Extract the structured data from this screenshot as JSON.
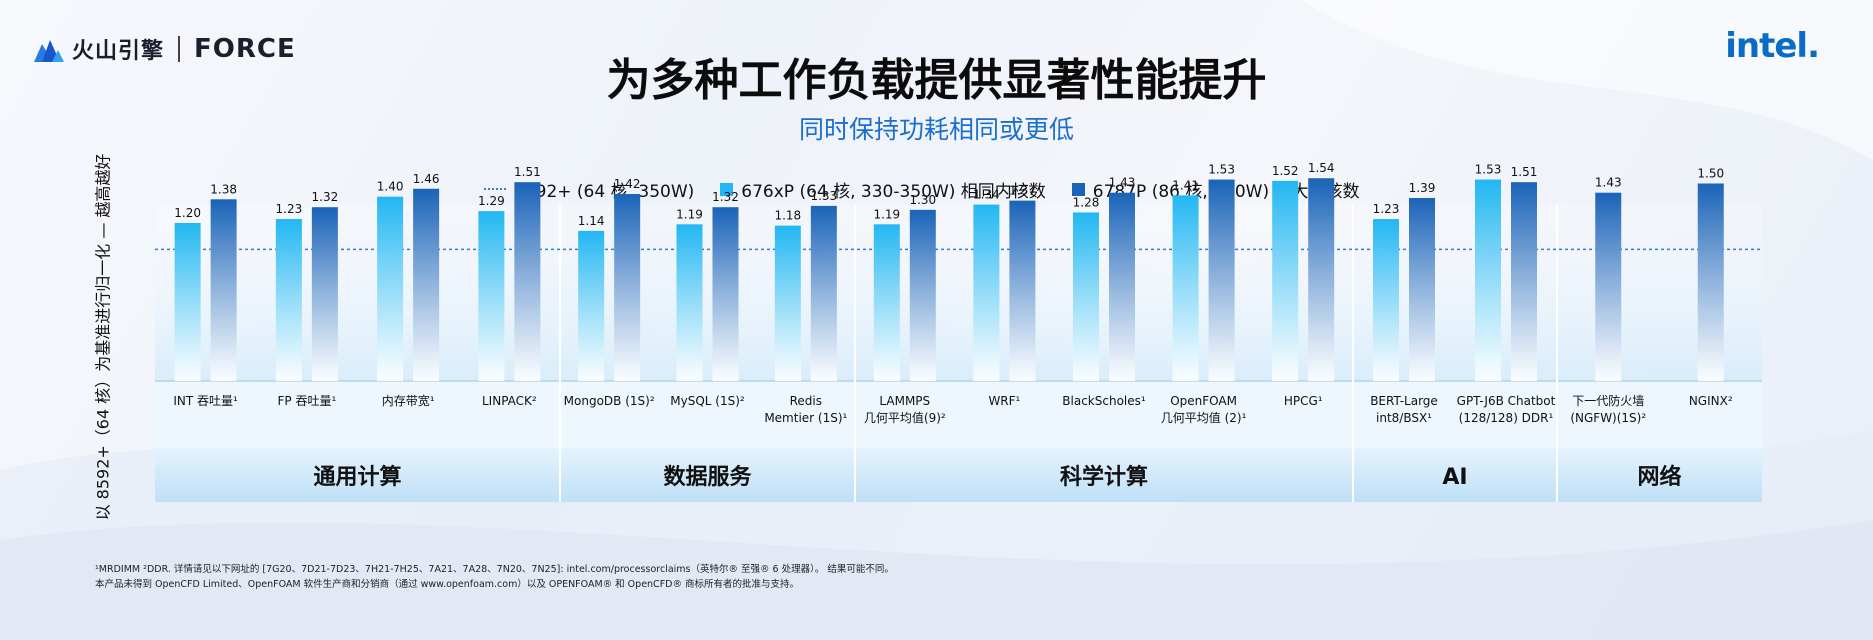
{
  "header": {
    "brand_cn": "火山引擎",
    "brand_en": "FORCE",
    "partner_logo": "intel."
  },
  "chart_data": {
    "type": "bar",
    "title": "为多种工作负载提供显著性能提升",
    "subtitle": "同时保持功耗相同或更低",
    "ylabel": "以 8592+（64 核）为基准进行归一化 — 越高越好",
    "baseline": {
      "name": "8592+ (64 核, 350W)",
      "value": 1.0
    },
    "ylim": [
      0,
      1.8
    ],
    "grid": false,
    "legend_position": "top",
    "colors": {
      "baseline": "#2f7fd1",
      "series1": "#22b7f2",
      "series2": "#1a63b8"
    },
    "categories": [
      "INT 吞吐量¹",
      "FP 吞吐量¹",
      "内存带宽¹",
      "LINPACK²",
      "MongoDB (1S)²",
      "MySQL (1S)²",
      "Redis\nMemtier (1S)¹",
      "LAMMPS\n几何平均值(9)²",
      "WRF¹",
      "BlackScholes¹",
      "OpenFOAM\n几何平均值 (2)¹",
      "HPCG¹",
      "BERT-Large\nint8/BSX¹",
      "GPT-J6B Chatbot\n(128/128) DDR¹",
      "下一代防火墙\n(NGFW)(1S)²",
      "NGINX²"
    ],
    "series": [
      {
        "name": "676xP (64 核, 330-350W) 相同内核数",
        "values": [
          1.2,
          1.23,
          1.4,
          1.29,
          1.14,
          1.19,
          1.18,
          1.19,
          1.34,
          1.28,
          1.41,
          1.52,
          1.23,
          1.53,
          null,
          null
        ]
      },
      {
        "name": "6787P (86 核, 350W) 最大内核数",
        "values": [
          1.38,
          1.32,
          1.46,
          1.51,
          1.42,
          1.32,
          1.33,
          1.3,
          1.37,
          1.43,
          1.53,
          1.54,
          1.39,
          1.51,
          1.43,
          1.5
        ]
      }
    ],
    "groups": [
      {
        "name": "通用计算",
        "count": 4
      },
      {
        "name": "数据服务",
        "count": 3
      },
      {
        "name": "科学计算",
        "count": 5
      },
      {
        "name": "AI",
        "count": 2
      },
      {
        "name": "网络",
        "count": 2
      }
    ]
  },
  "footnotes": {
    "line1": "¹MRDIMM  ²DDR. 详情请见以下网址的 [7G20、7D21-7D23、7H21-7H25、7A21、7A28、7N20、7N25]: intel.com/processorclaims（英特尔® 至强® 6 处理器）。 结果可能不同。",
    "line2": "本产品未得到 OpenCFD Limited、OpenFOAM 软件生产商和分销商（通过 www.openfoam.com）以及 OPENFOAM® 和 OpenCFD® 商标所有者的批准与支持。"
  }
}
